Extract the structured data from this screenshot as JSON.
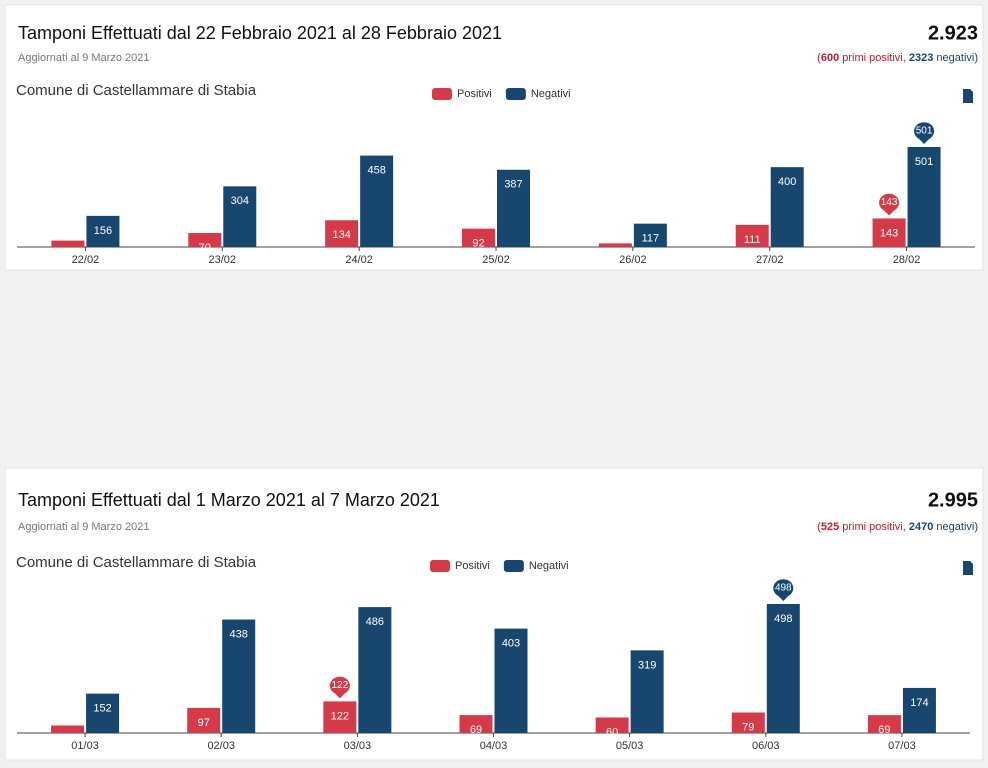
{
  "chart_data": [
    {
      "type": "bar",
      "title": "Tamponi Effettuati dal 22 Febbraio 2021 al 28 Febbraio 2021",
      "subtitle": "Aggiornati al 9 Marzo 2021",
      "total": "2.923",
      "summary": [
        "(",
        "600",
        " primi positivi, ",
        "2323",
        " negativi)"
      ],
      "location": "Comune di Castellammare di Stabia",
      "categories": [
        "22/02",
        "23/02",
        "24/02",
        "25/02",
        "26/02",
        "27/02",
        "28/02"
      ],
      "series": [
        {
          "name": "Positivi",
          "color": "#d43a48",
          "values": [
            32,
            70,
            134,
            92,
            18,
            111,
            143
          ]
        },
        {
          "name": "Negativi",
          "color": "#17466f",
          "values": [
            156,
            304,
            458,
            387,
            117,
            400,
            501
          ]
        }
      ]
    },
    {
      "type": "bar",
      "title": "Tamponi Effettuati dal 1 Marzo 2021 al 7 Marzo 2021",
      "subtitle": "Aggiornati al 9 Marzo 2021",
      "total": "2.995",
      "summary": [
        "(",
        "525",
        " primi positivi, ",
        "2470",
        " negativi)"
      ],
      "location": "Comune di Castellammare di Stabia",
      "categories": [
        "01/03",
        "02/03",
        "03/03",
        "04/03",
        "05/03",
        "06/03",
        "07/03"
      ],
      "series": [
        {
          "name": "Positivi",
          "color": "#d43a48",
          "values": [
            29,
            97,
            122,
            69,
            60,
            79,
            69
          ]
        },
        {
          "name": "Negativi",
          "color": "#17466f",
          "values": [
            152,
            438,
            486,
            403,
            319,
            498,
            174
          ]
        }
      ]
    }
  ]
}
